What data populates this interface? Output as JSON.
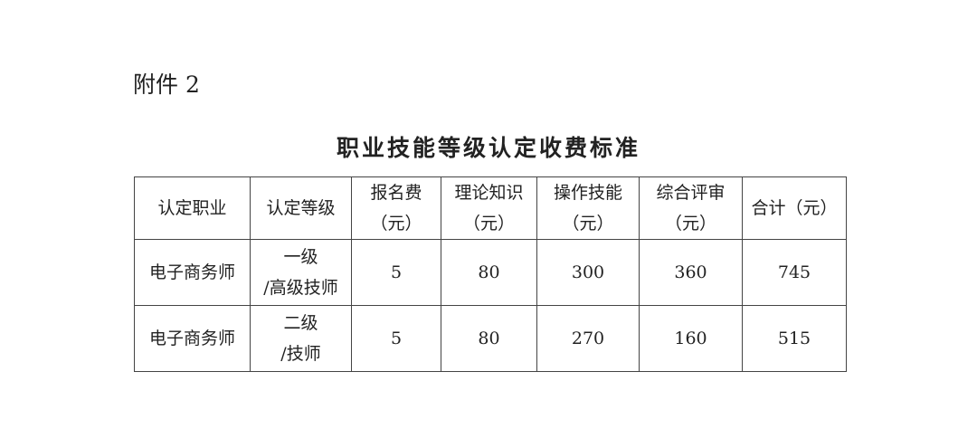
{
  "attachment_label": "附件 2",
  "title": "职业技能等级认定收费标准",
  "table": {
    "headers": [
      [
        "认定职业"
      ],
      [
        "认定等级"
      ],
      [
        "报名费",
        "（元）"
      ],
      [
        "理论知识",
        "（元）"
      ],
      [
        "操作技能",
        "（元）"
      ],
      [
        "综合评审",
        "（元）"
      ],
      [
        "合计（元）"
      ]
    ],
    "rows": [
      {
        "occupation": "电子商务师",
        "level": [
          "一级",
          "/高级技师"
        ],
        "registration": "5",
        "theory": "80",
        "practical": "300",
        "review": "360",
        "total": "745"
      },
      {
        "occupation": "电子商务师",
        "level": [
          "二级",
          "/技师"
        ],
        "registration": "5",
        "theory": "80",
        "practical": "270",
        "review": "160",
        "total": "515"
      }
    ]
  }
}
